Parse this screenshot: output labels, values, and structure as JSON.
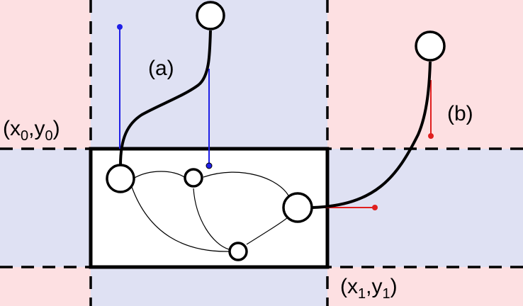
{
  "labels": {
    "edge_a": "(a)",
    "edge_b": "(b)",
    "corner_top_left": {
      "open": "(x",
      "sub_x": "0",
      "comma": ",y",
      "sub_y": "0",
      "close": ")"
    },
    "corner_bottom_right": {
      "open": "(x",
      "sub_x": "1",
      "comma": ",y",
      "sub_y": "1",
      "close": ")"
    }
  },
  "colors": {
    "region_red": "#fde0e2",
    "region_blue": "#dfe1f3",
    "box_fill": "#ffffff",
    "stroke": "#000000",
    "projection_blue": "#1f1fe6",
    "projection_red": "#e01f1f"
  }
}
